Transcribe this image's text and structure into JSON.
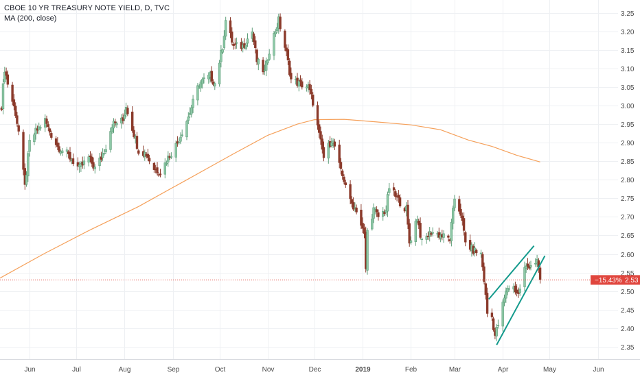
{
  "header": {
    "title": "CBOE 10 YR TREASURY NOTE YIELD, D, TVC",
    "study": "MA (200, close)"
  },
  "price_tag": {
    "change": "−15.43%",
    "price": "2.53"
  },
  "colors": {
    "up": "#8ec9a7",
    "up_border": "#5f9f7a",
    "down": "#8b3a2b",
    "ma": "#f5a05a",
    "trend": "#139a8c",
    "last_price": "#e0453d",
    "grid": "#eef0f3"
  },
  "chart_data": {
    "type": "candlestick",
    "y_ticks": [
      "3.25",
      "3.20",
      "3.15",
      "3.10",
      "3.05",
      "3.00",
      "2.95",
      "2.90",
      "2.85",
      "2.80",
      "2.75",
      "2.70",
      "2.65",
      "2.60",
      "2.55",
      "2.50",
      "2.45",
      "2.40",
      "2.35"
    ],
    "ylim": [
      2.32,
      3.27
    ],
    "x_ticks": [
      "Jun",
      "Jul",
      "Aug",
      "Sep",
      "Oct",
      "Nov",
      "Dec",
      "2019",
      "Feb",
      "Mar",
      "Apr",
      "May",
      "Jun"
    ],
    "x_tick_dates": [
      "2018-06-01",
      "2018-07-01",
      "2018-08-01",
      "2018-09-01",
      "2018-10-01",
      "2018-11-01",
      "2018-12-01",
      "2019-01-01",
      "2019-02-01",
      "2019-03-01",
      "2019-04-01",
      "2019-05-01",
      "2019-06-01"
    ],
    "xlim": [
      "2018-05-13",
      "2019-06-14"
    ],
    "last_price": 2.53,
    "price_anchors": [
      [
        "2018-05-14",
        3.0
      ],
      [
        "2018-05-16",
        3.1
      ],
      [
        "2018-05-18",
        3.06
      ],
      [
        "2018-05-23",
        2.98
      ],
      [
        "2018-05-25",
        2.93
      ],
      [
        "2018-05-29",
        2.78
      ],
      [
        "2018-06-01",
        2.9
      ],
      [
        "2018-06-05",
        2.93
      ],
      [
        "2018-06-11",
        2.96
      ],
      [
        "2018-06-14",
        2.93
      ],
      [
        "2018-06-19",
        2.89
      ],
      [
        "2018-06-25",
        2.87
      ],
      [
        "2018-06-29",
        2.85
      ],
      [
        "2018-07-03",
        2.83
      ],
      [
        "2018-07-09",
        2.86
      ],
      [
        "2018-07-13",
        2.83
      ],
      [
        "2018-07-17",
        2.86
      ],
      [
        "2018-07-20",
        2.89
      ],
      [
        "2018-07-24",
        2.95
      ],
      [
        "2018-07-31",
        2.96
      ],
      [
        "2018-08-02",
        3.0
      ],
      [
        "2018-08-06",
        2.94
      ],
      [
        "2018-08-10",
        2.88
      ],
      [
        "2018-08-15",
        2.87
      ],
      [
        "2018-08-20",
        2.83
      ],
      [
        "2018-08-24",
        2.82
      ],
      [
        "2018-08-29",
        2.86
      ],
      [
        "2018-09-04",
        2.9
      ],
      [
        "2018-09-11",
        2.97
      ],
      [
        "2018-09-18",
        3.06
      ],
      [
        "2018-09-25",
        3.08
      ],
      [
        "2018-09-28",
        3.06
      ],
      [
        "2018-10-03",
        3.16
      ],
      [
        "2018-10-05",
        3.23
      ],
      [
        "2018-10-10",
        3.16
      ],
      [
        "2018-10-16",
        3.16
      ],
      [
        "2018-10-22",
        3.2
      ],
      [
        "2018-10-25",
        3.12
      ],
      [
        "2018-10-30",
        3.09
      ],
      [
        "2018-11-02",
        3.15
      ],
      [
        "2018-11-08",
        3.23
      ],
      [
        "2018-11-13",
        3.14
      ],
      [
        "2018-11-16",
        3.07
      ],
      [
        "2018-11-21",
        3.06
      ],
      [
        "2018-11-27",
        3.05
      ],
      [
        "2018-11-30",
        3.01
      ],
      [
        "2018-12-04",
        2.92
      ],
      [
        "2018-12-07",
        2.86
      ],
      [
        "2018-12-12",
        2.91
      ],
      [
        "2018-12-14",
        2.89
      ],
      [
        "2018-12-18",
        2.82
      ],
      [
        "2018-12-21",
        2.79
      ],
      [
        "2018-12-24",
        2.74
      ],
      [
        "2018-12-28",
        2.72
      ],
      [
        "2019-01-02",
        2.65
      ],
      [
        "2019-01-03",
        2.56
      ],
      [
        "2019-01-04",
        2.66
      ],
      [
        "2019-01-08",
        2.72
      ],
      [
        "2019-01-11",
        2.7
      ],
      [
        "2019-01-16",
        2.72
      ],
      [
        "2019-01-18",
        2.78
      ],
      [
        "2019-01-23",
        2.75
      ],
      [
        "2019-01-29",
        2.72
      ],
      [
        "2019-01-31",
        2.63
      ],
      [
        "2019-02-05",
        2.7
      ],
      [
        "2019-02-08",
        2.63
      ],
      [
        "2019-02-14",
        2.66
      ],
      [
        "2019-02-20",
        2.65
      ],
      [
        "2019-02-26",
        2.64
      ],
      [
        "2019-03-01",
        2.75
      ],
      [
        "2019-03-05",
        2.71
      ],
      [
        "2019-03-08",
        2.63
      ],
      [
        "2019-03-13",
        2.61
      ],
      [
        "2019-03-18",
        2.6
      ],
      [
        "2019-03-20",
        2.53
      ],
      [
        "2019-03-22",
        2.44
      ],
      [
        "2019-03-25",
        2.43
      ],
      [
        "2019-03-27",
        2.38
      ],
      [
        "2019-03-29",
        2.41
      ],
      [
        "2019-04-02",
        2.48
      ],
      [
        "2019-04-04",
        2.51
      ],
      [
        "2019-04-08",
        2.51
      ],
      [
        "2019-04-11",
        2.49
      ],
      [
        "2019-04-15",
        2.56
      ],
      [
        "2019-04-18",
        2.57
      ],
      [
        "2019-04-23",
        2.58
      ],
      [
        "2019-04-25",
        2.53
      ]
    ],
    "ma200": [
      [
        "2018-05-13",
        2.535
      ],
      [
        "2018-06-10",
        2.6
      ],
      [
        "2018-07-10",
        2.665
      ],
      [
        "2018-08-10",
        2.728
      ],
      [
        "2018-09-10",
        2.8
      ],
      [
        "2018-10-10",
        2.87
      ],
      [
        "2018-11-01",
        2.92
      ],
      [
        "2018-11-20",
        2.95
      ],
      [
        "2018-12-01",
        2.962
      ],
      [
        "2018-12-20",
        2.963
      ],
      [
        "2019-01-10",
        2.956
      ],
      [
        "2019-02-01",
        2.948
      ],
      [
        "2019-02-20",
        2.935
      ],
      [
        "2019-03-10",
        2.907
      ],
      [
        "2019-03-25",
        2.89
      ],
      [
        "2019-04-10",
        2.866
      ],
      [
        "2019-04-25",
        2.848
      ]
    ],
    "trend_lines": [
      {
        "from": [
          "2019-03-23",
          2.478
        ],
        "to": [
          "2019-04-21",
          2.622
        ]
      },
      {
        "from": [
          "2019-03-28",
          2.355
        ],
        "to": [
          "2019-04-28",
          2.595
        ]
      }
    ]
  }
}
